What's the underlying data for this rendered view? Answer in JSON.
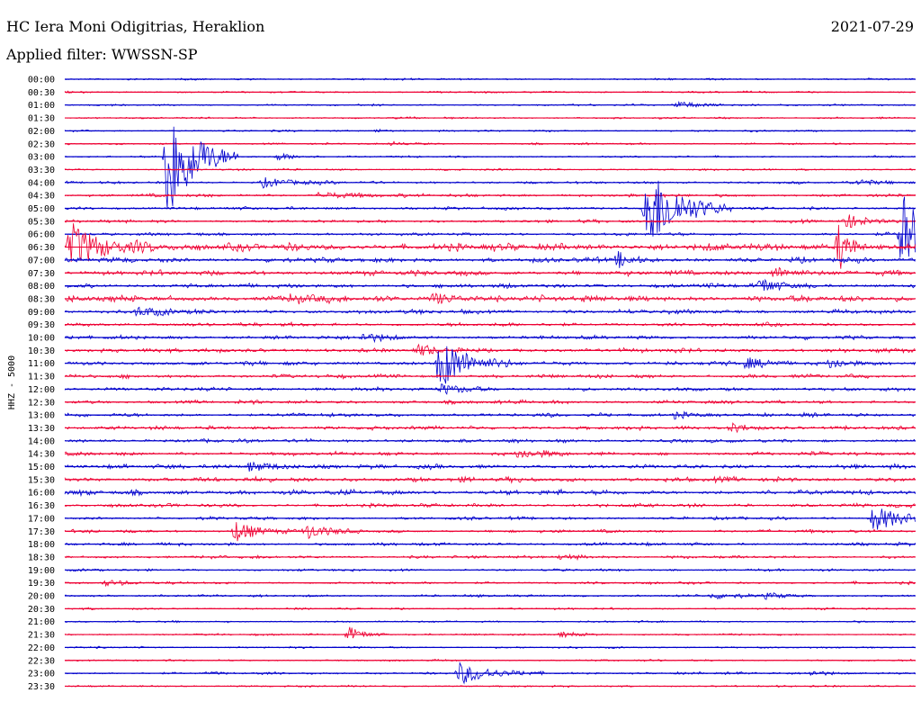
{
  "header": {
    "station": "HC Iera Moni Odigitrias, Heraklion",
    "date": "2021-07-29",
    "filter_label": "Applied filter: WWSSN-SP"
  },
  "chart_data": {
    "type": "line",
    "title": "HC Iera Moni Odigitrias, Heraklion",
    "ylabel": "HHZ - 5000",
    "xlabel": "",
    "colors": [
      "#0000cc",
      "#ee0033"
    ],
    "grid": false,
    "tick_labels": [
      "00:00",
      "00:30",
      "01:00",
      "01:30",
      "02:00",
      "02:30",
      "03:00",
      "03:30",
      "04:00",
      "04:30",
      "05:00",
      "05:30",
      "06:00",
      "06:30",
      "07:00",
      "07:30",
      "08:00",
      "08:30",
      "09:00",
      "09:30",
      "10:00",
      "10:30",
      "11:00",
      "11:30",
      "12:00",
      "12:30",
      "13:00",
      "13:30",
      "14:00",
      "14:30",
      "15:00",
      "15:30",
      "16:00",
      "16:30",
      "17:00",
      "17:30",
      "18:00",
      "18:30",
      "19:00",
      "19:30",
      "20:00",
      "20:30",
      "21:00",
      "21:30",
      "22:00",
      "22:30",
      "23:00",
      "23:30"
    ],
    "row_minutes": 30,
    "noise_level": [
      0.3,
      0.3,
      0.3,
      0.3,
      0.3,
      0.3,
      0.3,
      0.3,
      0.4,
      0.5,
      0.5,
      0.5,
      0.5,
      1.2,
      0.8,
      0.8,
      0.7,
      1.0,
      0.7,
      0.6,
      0.6,
      0.7,
      0.7,
      0.6,
      0.6,
      0.6,
      0.6,
      0.6,
      0.6,
      0.6,
      0.7,
      0.8,
      0.8,
      0.6,
      0.5,
      0.5,
      0.5,
      0.5,
      0.4,
      0.4,
      0.4,
      0.3,
      0.3,
      0.3,
      0.3,
      0.3,
      0.4,
      0.3
    ],
    "events": [
      {
        "row": 2,
        "minute": 21.5,
        "amplitude": 4,
        "duration": 3
      },
      {
        "row": 4,
        "minute": 11,
        "amplitude": 2,
        "duration": 1
      },
      {
        "row": 5,
        "minute": 11.5,
        "amplitude": 2,
        "duration": 2
      },
      {
        "row": 6,
        "minute": 3.6,
        "amplitude": 80,
        "duration": 2.5
      },
      {
        "row": 6,
        "minute": 7.5,
        "amplitude": 4,
        "duration": 2
      },
      {
        "row": 8,
        "minute": 7,
        "amplitude": 5,
        "duration": 3
      },
      {
        "row": 8,
        "minute": 28,
        "amplitude": 4,
        "duration": 2
      },
      {
        "row": 9,
        "minute": 9,
        "amplitude": 4,
        "duration": 3
      },
      {
        "row": 10,
        "minute": 20.5,
        "amplitude": 52,
        "duration": 3
      },
      {
        "row": 11,
        "minute": 27.5,
        "amplitude": 8,
        "duration": 2
      },
      {
        "row": 12,
        "minute": 29.5,
        "amplitude": 45,
        "duration": 4
      },
      {
        "row": 13,
        "minute": 0.2,
        "amplitude": 25,
        "duration": 3
      },
      {
        "row": 13,
        "minute": 2.5,
        "amplitude": 4,
        "duration": 2
      },
      {
        "row": 13,
        "minute": 27.3,
        "amplitude": 30,
        "duration": 1
      },
      {
        "row": 14,
        "minute": 19.5,
        "amplitude": 10,
        "duration": 1
      },
      {
        "row": 15,
        "minute": 25,
        "amplitude": 7,
        "duration": 2
      },
      {
        "row": 16,
        "minute": 24.5,
        "amplitude": 8,
        "duration": 2
      },
      {
        "row": 17,
        "minute": 8,
        "amplitude": 5,
        "duration": 2
      },
      {
        "row": 17,
        "minute": 13,
        "amplitude": 6,
        "duration": 2.5
      },
      {
        "row": 18,
        "minute": 2.5,
        "amplitude": 5,
        "duration": 2.5
      },
      {
        "row": 20,
        "minute": 10.5,
        "amplitude": 5,
        "duration": 2
      },
      {
        "row": 21,
        "minute": 12.5,
        "amplitude": 5,
        "duration": 2
      },
      {
        "row": 22,
        "minute": 13.2,
        "amplitude": 30,
        "duration": 2.5
      },
      {
        "row": 22,
        "minute": 24,
        "amplitude": 6,
        "duration": 2
      },
      {
        "row": 22,
        "minute": 27,
        "amplitude": 6,
        "duration": 2
      },
      {
        "row": 24,
        "minute": 13.3,
        "amplitude": 6,
        "duration": 2
      },
      {
        "row": 26,
        "minute": 21.5,
        "amplitude": 4,
        "duration": 2
      },
      {
        "row": 27,
        "minute": 23.5,
        "amplitude": 5,
        "duration": 2
      },
      {
        "row": 29,
        "minute": 16,
        "amplitude": 6,
        "duration": 2
      },
      {
        "row": 30,
        "minute": 6.5,
        "amplitude": 5,
        "duration": 3
      },
      {
        "row": 34,
        "minute": 28.5,
        "amplitude": 14,
        "duration": 3
      },
      {
        "row": 35,
        "minute": 6,
        "amplitude": 12,
        "duration": 2
      },
      {
        "row": 35,
        "minute": 8.5,
        "amplitude": 9,
        "duration": 2
      },
      {
        "row": 37,
        "minute": 17.5,
        "amplitude": 3,
        "duration": 2
      },
      {
        "row": 39,
        "minute": 1.4,
        "amplitude": 3,
        "duration": 2
      },
      {
        "row": 40,
        "minute": 22.8,
        "amplitude": 3,
        "duration": 2.5
      },
      {
        "row": 40,
        "minute": 24.7,
        "amplitude": 3,
        "duration": 2
      },
      {
        "row": 43,
        "minute": 10,
        "amplitude": 9,
        "duration": 1.5
      },
      {
        "row": 43,
        "minute": 17.5,
        "amplitude": 3,
        "duration": 2
      },
      {
        "row": 46,
        "minute": 13.9,
        "amplitude": 12,
        "duration": 3
      },
      {
        "row": 46,
        "minute": 26.3,
        "amplitude": 3,
        "duration": 2
      }
    ]
  }
}
